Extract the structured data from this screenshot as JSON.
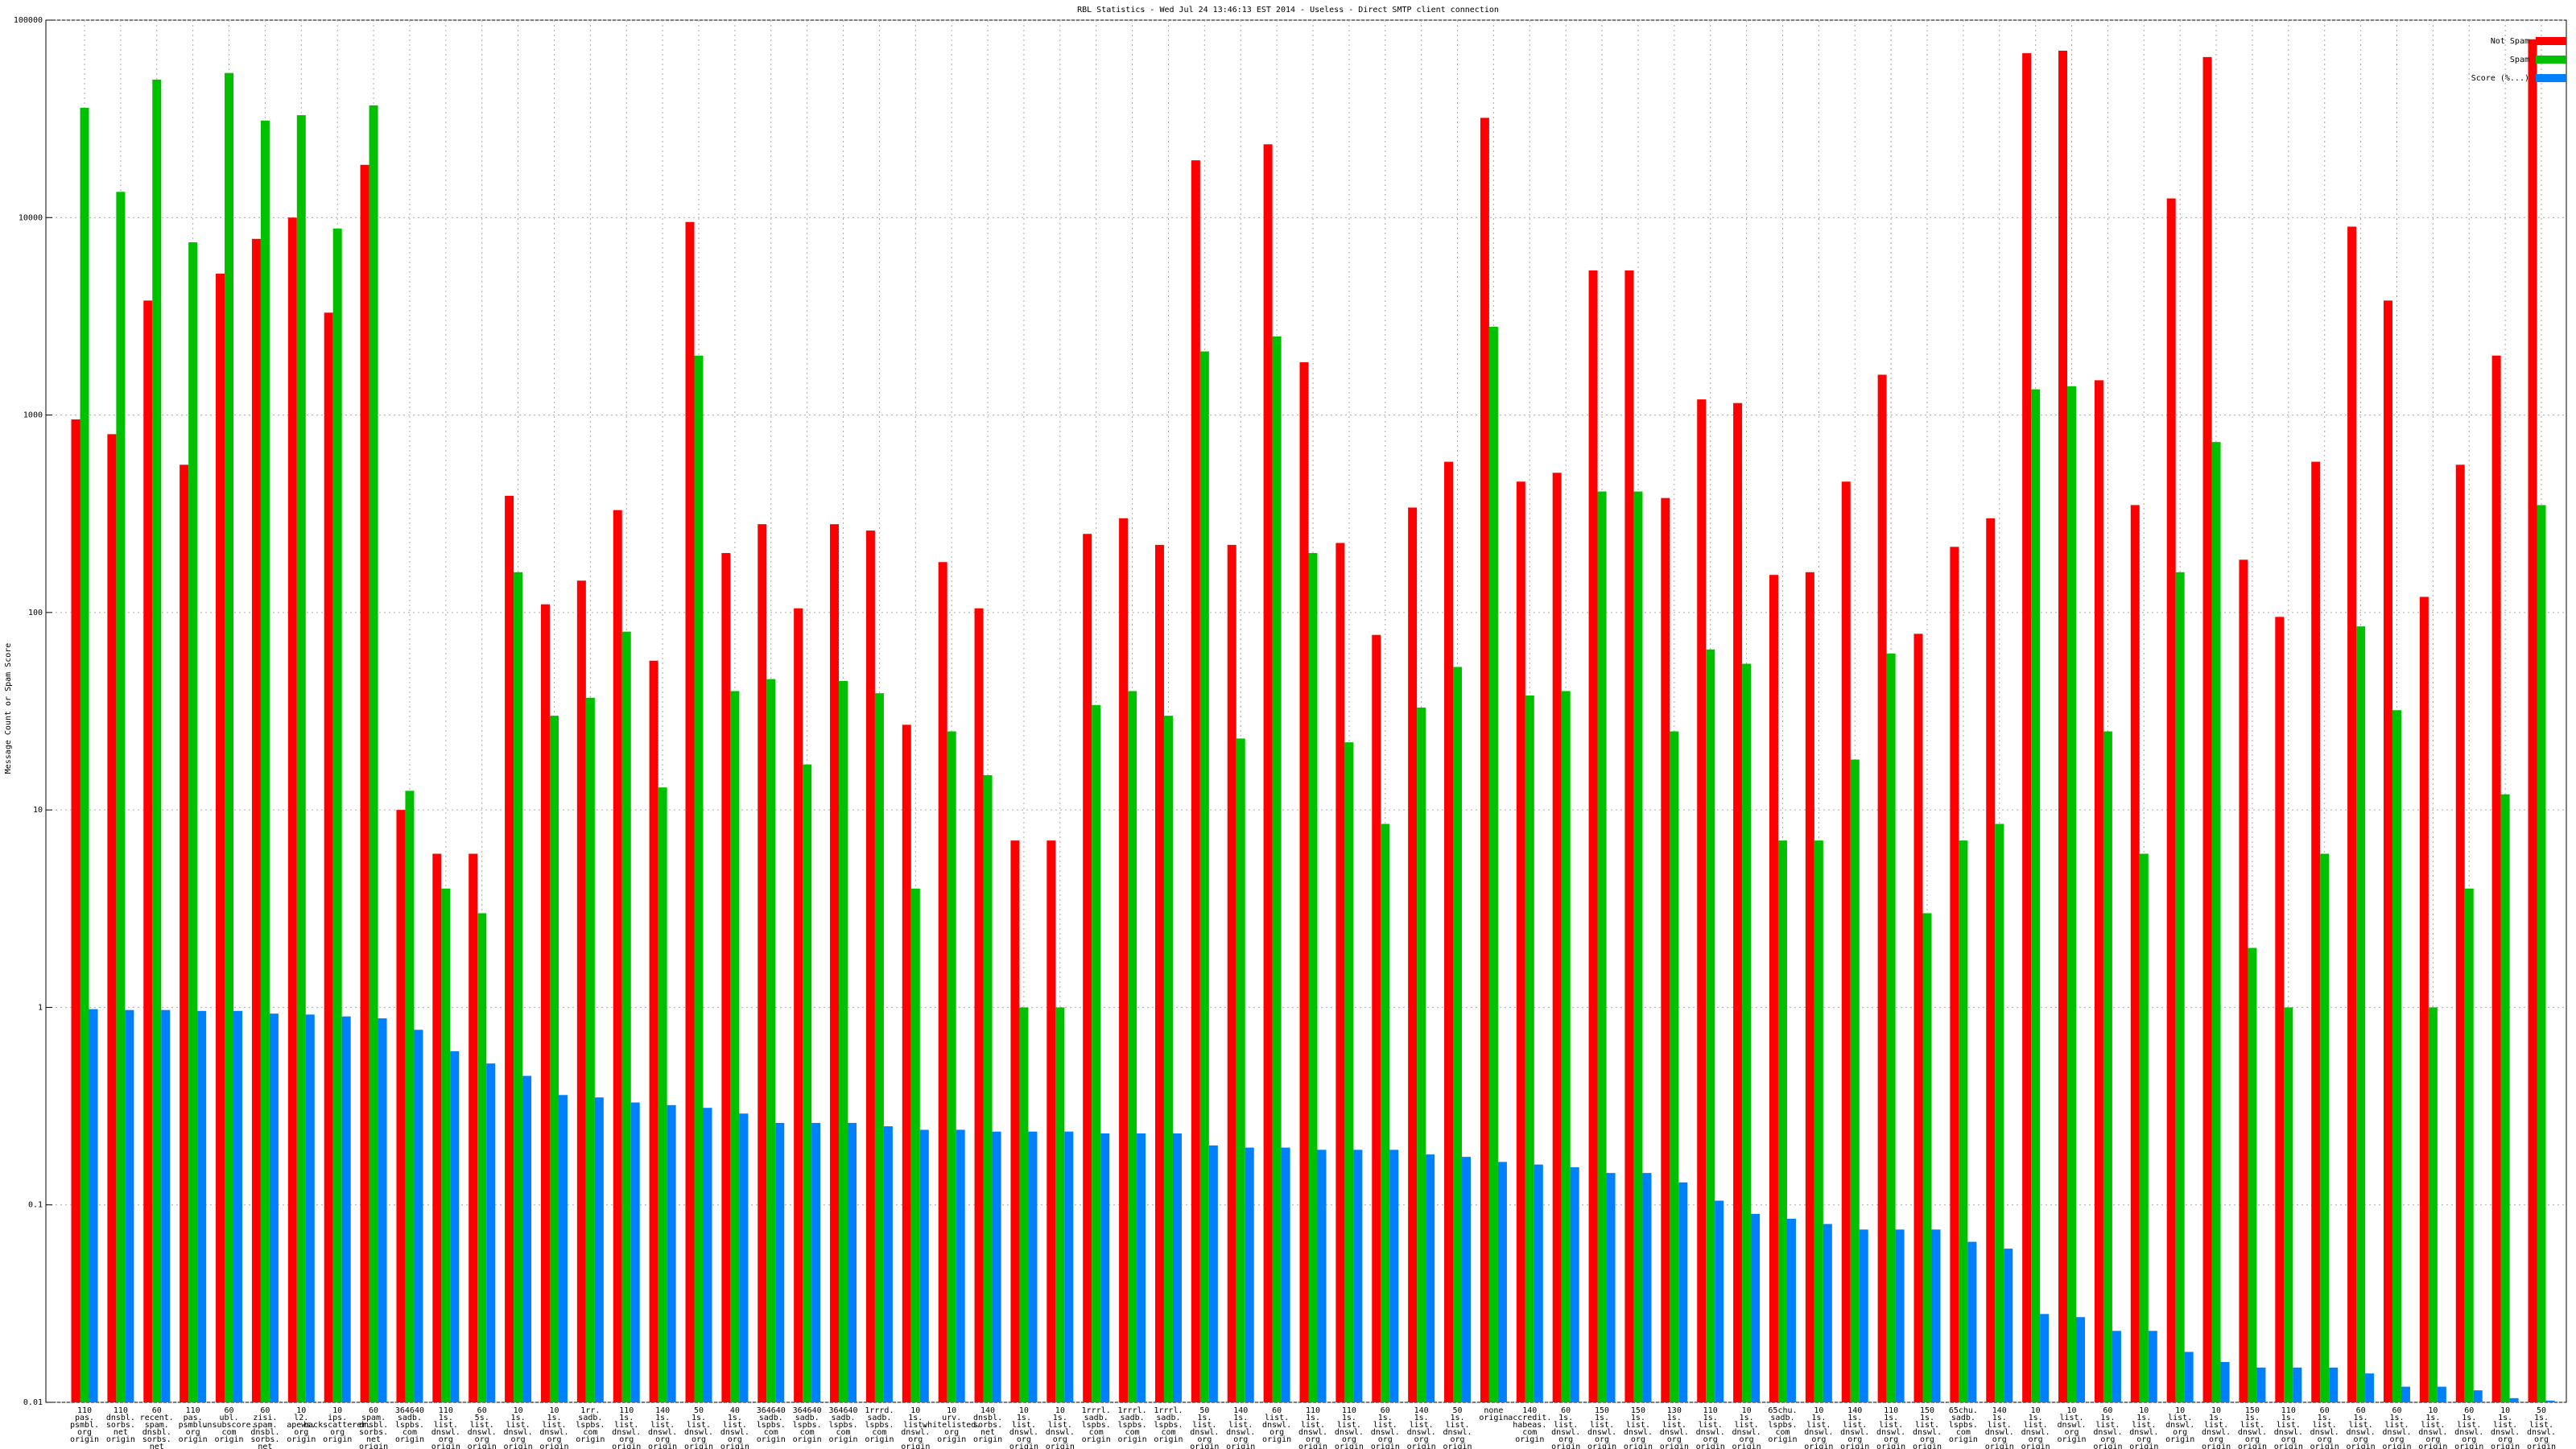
{
  "chart_data": {
    "type": "bar",
    "title": "RBL Statistics - Wed Jul 24 13:46:13 EST 2014 - Useless - Direct SMTP client connection",
    "y_label": "Message Count or Spam Score",
    "log_scale": true,
    "grid": true,
    "legend": "top-right",
    "ylim": [
      0.01,
      100000
    ],
    "yticks": [
      0.01,
      0.1,
      1,
      10,
      100,
      1000,
      10000,
      100000
    ],
    "categories": [
      "110\npas.\npsmbl.\norg\norigin",
      "110\ndnsbl.\nsorbs.\nnet\norigin",
      "60\nrecent.\nspam.\ndnsbl.\nsorbs.\nnet\norigin",
      "110\npas.\npsmbl.\norg\norigin",
      "60\nubl.\nunsubscore.\ncom\norigin",
      "60\nzisi.\nspam.\ndnsbl.\nsorbs.\nnet\norigin",
      "10\nl2.\napews.\norg\norigin",
      "10\nips.\nbackscatterer.\norg\norigin",
      "60\nspam.\ndnsbl.\nsorbs.\nnet\norigin",
      "364640\nsadb.\nlspbs.\ncom\norigin",
      "110\n1s.\nlist.\ndnswl.\norg\norigin",
      "60\n5s.\nlist.\ndnswl.\norg\norigin",
      "10\n1s.\nlist.\ndnswl.\norg\norigin",
      "10\n1s.\nlist.\ndnswl.\norg\norigin",
      "1rr.\nsadb.\nlspbs.\ncom\norigin",
      "110\n1s.\nlist.\ndnswl.\norg\norigin",
      "140\n1s.\nlist.\ndnswl.\norg\norigin",
      "50\n1s.\nlist.\ndnswl.\norg\norigin",
      "40\n1s.\nlist.\ndnswl.\norg\norigin",
      "364640\nsadb.\nlspbs.\ncom\norigin",
      "364640\nsadb.\nlspbs.\ncom\norigin",
      "364640\nsadb.\nlspbs.\ncom\norigin",
      "1rrrd.\nsadb.\nlspbs.\ncom\norigin",
      "10\n1s.\nlist.\ndnswl.\norg\norigin",
      "10\nurv.\nwhitelisted.\norg\norigin",
      "140\ndnsbl.\nsorbs.\nnet\norigin",
      "10\n1s.\nlist.\ndnswl.\norg\norigin",
      "10\n1s.\nlist.\ndnswl.\norg\norigin",
      "1rrrl.\nsadb.\nlspbs.\ncom\norigin",
      "1rrrl.\nsadb.\nlspbs.\ncom\norigin",
      "1rrrl.\nsadb.\nlspbs.\ncom\norigin",
      "50\n1s.\nlist.\ndnswl.\norg\norigin",
      "140\n1s.\nlist.\ndnswl.\norg\norigin",
      "60\nlist.\ndnswl.\norg\norigin",
      "110\n1s.\nlist.\ndnswl.\norg\norigin",
      "110\n1s.\nlist.\ndnswl.\norg\norigin",
      "60\n1s.\nlist.\ndnswl.\norg\norigin",
      "140\n1s.\nlist.\ndnswl.\norg\norigin",
      "50\n1s.\nlist.\ndnswl.\norg\norigin",
      "none\norigin",
      "140\naccredit.\nhabeas.\ncom\norigin",
      "60\n1s.\nlist.\ndnswl.\norg\norigin",
      "150\n1s.\nlist.\ndnswl.\norg\norigin",
      "150\n1s.\nlist.\ndnswl.\norg\norigin",
      "130\n1s.\nlist.\ndnswl.\norg\norigin",
      "110\n1s.\nlist.\ndnswl.\norg\norigin",
      "10\n1s.\nlist.\ndnswl.\norg\norigin",
      "65chu.\nsadb.\nlspbs.\ncom\norigin",
      "10\n1s.\nlist.\ndnswl.\norg\norigin",
      "140\n1s.\nlist.\ndnswl.\norg\norigin",
      "110\n1s.\nlist.\ndnswl.\norg\norigin",
      "150\n1s.\nlist.\ndnswl.\norg\norigin",
      "65chu.\nsadb.\nlspbs.\ncom\norigin",
      "140\n1s.\nlist.\ndnswl.\norg\norigin",
      "10\n1s.\nlist.\ndnswl.\norg\norigin",
      "10\nlist.\ndnswl.\norg\norigin",
      "60\n1s.\nlist.\ndnswl.\norg\norigin",
      "10\n1s.\nlist.\ndnswl.\norg\norigin",
      "10\nlist.\ndnswl.\norg\norigin",
      "10\n1s.\nlist.\ndnswl.\norg\norigin",
      "150\n1s.\nlist.\ndnswl.\norg\norigin",
      "110\n1s.\nlist.\ndnswl.\norg\norigin",
      "60\n1s.\nlist.\ndnswl.\norg\norigin",
      "60\n1s.\nlist.\ndnswl.\norg\norigin",
      "60\n1s.\nlist.\ndnswl.\norg\norigin",
      "10\n1s.\nlist.\ndnswl.\norg\norigin",
      "60\n1s.\nlist.\ndnswl.\norg\norigin",
      "10\n1s.\nlist.\ndnswl.\norg\norigin",
      "50\n1s.\nlist.\ndnswl.\norg\norigin"
    ],
    "series": [
      {
        "name": "Not Spam",
        "color": "#ff0000",
        "values": [
          950,
          800,
          3800,
          560,
          5200,
          7800,
          10000,
          3300,
          18500,
          10,
          6,
          6,
          390,
          110,
          145,
          330,
          57,
          9500,
          200,
          280,
          105,
          280,
          260,
          27,
          180,
          105,
          7,
          7,
          250,
          300,
          220,
          19500,
          220,
          23500,
          1850,
          225,
          77,
          340,
          580,
          32000,
          460,
          510,
          5400,
          5400,
          380,
          1200,
          1150,
          155,
          160,
          460,
          1600,
          78,
          215,
          300,
          68000,
          70000,
          1500,
          350,
          12500,
          65000,
          185,
          95,
          580,
          9000,
          3800,
          120,
          560,
          2000,
          80000
        ]
      },
      {
        "name": "Spam",
        "color": "#00c000",
        "values": [
          36000,
          13500,
          50000,
          7500,
          54000,
          31000,
          33000,
          8800,
          37000,
          12.5,
          4,
          3,
          160,
          30,
          37,
          80,
          13,
          2000,
          40,
          46,
          17,
          45,
          39,
          4,
          25,
          15,
          1,
          1,
          34,
          40,
          30,
          2100,
          23,
          2500,
          200,
          22,
          8.5,
          33,
          53,
          2800,
          38,
          40,
          410,
          410,
          25,
          65,
          55,
          7,
          7,
          18,
          62,
          3,
          7,
          8.5,
          1350,
          1400,
          25,
          6,
          160,
          730,
          2,
          1,
          6,
          85,
          32,
          1,
          4,
          12,
          350
        ]
      },
      {
        "name": "Score (%...)",
        "color": "#0080ff",
        "values": [
          0.98,
          0.97,
          0.97,
          0.96,
          0.96,
          0.93,
          0.92,
          0.9,
          0.88,
          0.77,
          0.6,
          0.52,
          0.45,
          0.36,
          0.35,
          0.33,
          0.32,
          0.31,
          0.29,
          0.26,
          0.26,
          0.26,
          0.25,
          0.24,
          0.24,
          0.235,
          0.235,
          0.235,
          0.23,
          0.23,
          0.23,
          0.2,
          0.195,
          0.195,
          0.19,
          0.19,
          0.19,
          0.18,
          0.175,
          0.165,
          0.16,
          0.155,
          0.145,
          0.145,
          0.13,
          0.105,
          0.09,
          0.085,
          0.08,
          0.075,
          0.075,
          0.075,
          0.065,
          0.06,
          0.028,
          0.027,
          0.023,
          0.023,
          0.018,
          0.016,
          0.015,
          0.015,
          0.015,
          0.014,
          0.012,
          0.012,
          0.0115,
          0.0105,
          0.0102
        ]
      }
    ]
  }
}
